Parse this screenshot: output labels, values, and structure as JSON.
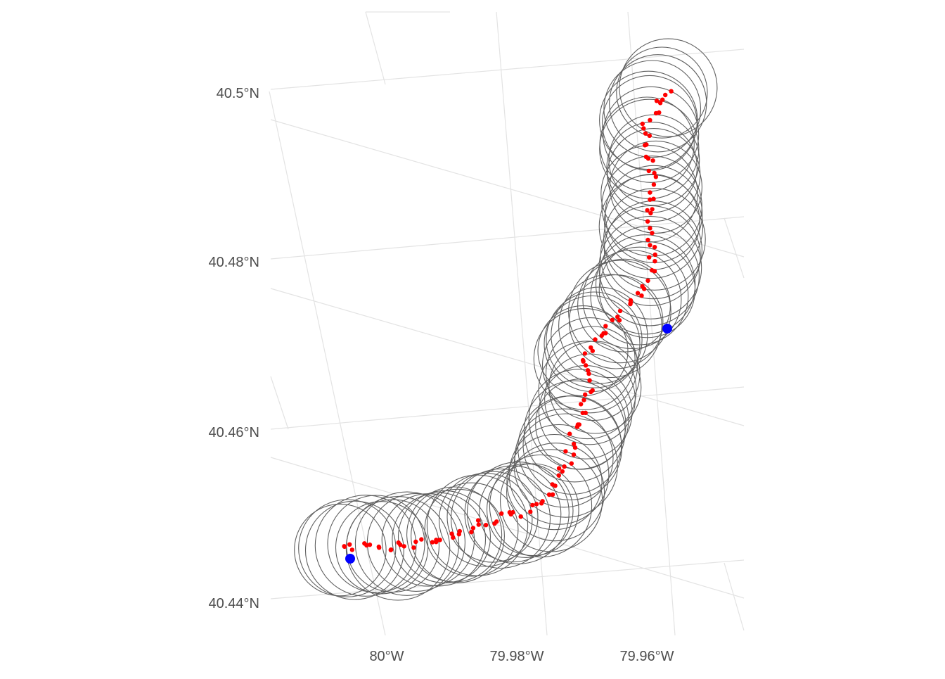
{
  "map": {
    "lat_ticks": [
      {
        "label": "40.5°N"
      },
      {
        "label": "40.48°N"
      },
      {
        "label": "40.46°N"
      },
      {
        "label": "40.44°N"
      }
    ],
    "lon_ticks": [
      {
        "label": "80°W"
      },
      {
        "label": "79.98°W"
      },
      {
        "label": "79.96°W"
      }
    ],
    "colors": {
      "background": "#ffffff",
      "grid": "#e3e3e3",
      "buffer_ring": "#5f5f5f",
      "track_point": "#ff0000",
      "endpoint": "#0000ff",
      "axis_text": "#4d4d4d"
    },
    "layers": {
      "buffers": "gray-outline-circles",
      "track": "red-points",
      "endpoints": "blue-points"
    }
  }
}
